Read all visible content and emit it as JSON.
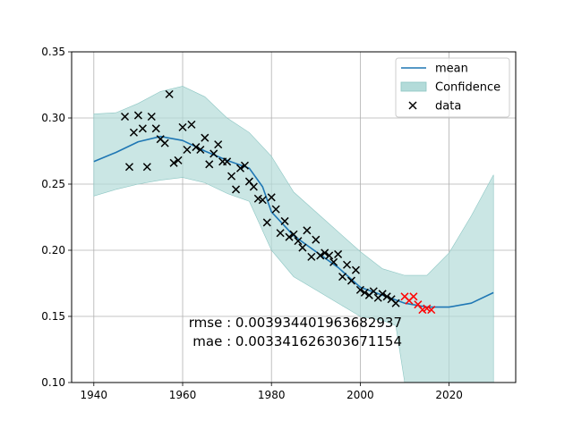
{
  "chart_data": {
    "type": "line",
    "title": "",
    "xlabel": "",
    "ylabel": "",
    "xlim": [
      1935,
      2035
    ],
    "ylim": [
      0.1,
      0.35
    ],
    "grid": true,
    "legend_placement": "top-right",
    "xticks": [
      "1940",
      "1960",
      "1980",
      "2000",
      "2020"
    ],
    "xtick_values": [
      1940,
      1960,
      1980,
      2000,
      2020
    ],
    "yticks": [
      "0.10",
      "0.15",
      "0.20",
      "0.25",
      "0.30",
      "0.35"
    ],
    "ytick_values": [
      0.1,
      0.15,
      0.2,
      0.25,
      0.3,
      0.35
    ],
    "legend": {
      "mean": "mean",
      "confidence": "Confidence",
      "data": "data"
    },
    "colors": {
      "mean": "#1f77b4",
      "confidence_fill": "#b3dbd9",
      "confidence_edge": "#8cc6c3",
      "data": "#000000",
      "test": "#ff0000",
      "grid": "#b0b0b0"
    },
    "annotations": {
      "rmse": "rmse : 0.003934401963682937",
      "mae": "mae : 0.003341626303671154"
    },
    "mean": {
      "x": [
        1940,
        1945,
        1950,
        1955,
        1960,
        1965,
        1970,
        1975,
        1978,
        1980,
        1985,
        1990,
        1995,
        2000,
        2005,
        2010,
        2015,
        2020,
        2025,
        2030
      ],
      "y": [
        0.267,
        0.274,
        0.282,
        0.286,
        0.283,
        0.275,
        0.268,
        0.262,
        0.248,
        0.229,
        0.211,
        0.199,
        0.187,
        0.172,
        0.166,
        0.16,
        0.157,
        0.157,
        0.16,
        0.168
      ]
    },
    "confidence_upper": {
      "x": [
        1940,
        1945,
        1950,
        1955,
        1960,
        1965,
        1970,
        1975,
        1980,
        1985,
        1990,
        1995,
        2000,
        2005,
        2010,
        2015,
        2020,
        2025,
        2030
      ],
      "y": [
        0.303,
        0.304,
        0.311,
        0.32,
        0.324,
        0.316,
        0.3,
        0.289,
        0.271,
        0.244,
        0.229,
        0.214,
        0.199,
        0.186,
        0.181,
        0.181,
        0.198,
        0.226,
        0.257
      ]
    },
    "confidence_lower": {
      "x": [
        1940,
        1945,
        1950,
        1955,
        1960,
        1965,
        1970,
        1975,
        1980,
        1985,
        1990,
        1995,
        2000,
        2005,
        2008,
        2010,
        2015,
        2020,
        2025,
        2030
      ],
      "y": [
        0.241,
        0.246,
        0.25,
        0.253,
        0.255,
        0.251,
        0.243,
        0.237,
        0.2,
        0.18,
        0.17,
        0.16,
        0.15,
        0.147,
        0.143,
        0.1,
        0.1,
        0.1,
        0.1,
        0.1
      ]
    },
    "data": {
      "x": [
        1947,
        1948,
        1949,
        1950,
        1951,
        1952,
        1953,
        1954,
        1955,
        1956,
        1957,
        1958,
        1959,
        1960,
        1961,
        1962,
        1963,
        1964,
        1965,
        1966,
        1967,
        1968,
        1969,
        1970,
        1971,
        1972,
        1973,
        1974,
        1975,
        1976,
        1977,
        1978,
        1979,
        1980,
        1981,
        1982,
        1983,
        1984,
        1985,
        1986,
        1987,
        1988,
        1989,
        1990,
        1991,
        1992,
        1993,
        1994,
        1995,
        1996,
        1997,
        1998,
        1999,
        2000,
        2001,
        2002,
        2003,
        2004,
        2005,
        2006,
        2007,
        2008
      ],
      "y": [
        0.301,
        0.263,
        0.289,
        0.302,
        0.292,
        0.263,
        0.301,
        0.292,
        0.284,
        0.281,
        0.318,
        0.266,
        0.268,
        0.293,
        0.276,
        0.295,
        0.278,
        0.276,
        0.285,
        0.265,
        0.273,
        0.28,
        0.267,
        0.267,
        0.256,
        0.246,
        0.262,
        0.264,
        0.252,
        0.248,
        0.239,
        0.238,
        0.221,
        0.24,
        0.231,
        0.213,
        0.222,
        0.21,
        0.212,
        0.207,
        0.202,
        0.215,
        0.195,
        0.208,
        0.196,
        0.198,
        0.196,
        0.191,
        0.197,
        0.18,
        0.189,
        0.177,
        0.185,
        0.17,
        0.168,
        0.166,
        0.169,
        0.164,
        0.167,
        0.165,
        0.163,
        0.16
      ]
    },
    "test": {
      "x": [
        2010,
        2011,
        2012,
        2013,
        2014,
        2015,
        2016
      ],
      "y": [
        0.165,
        0.162,
        0.165,
        0.159,
        0.155,
        0.156,
        0.155
      ]
    }
  }
}
